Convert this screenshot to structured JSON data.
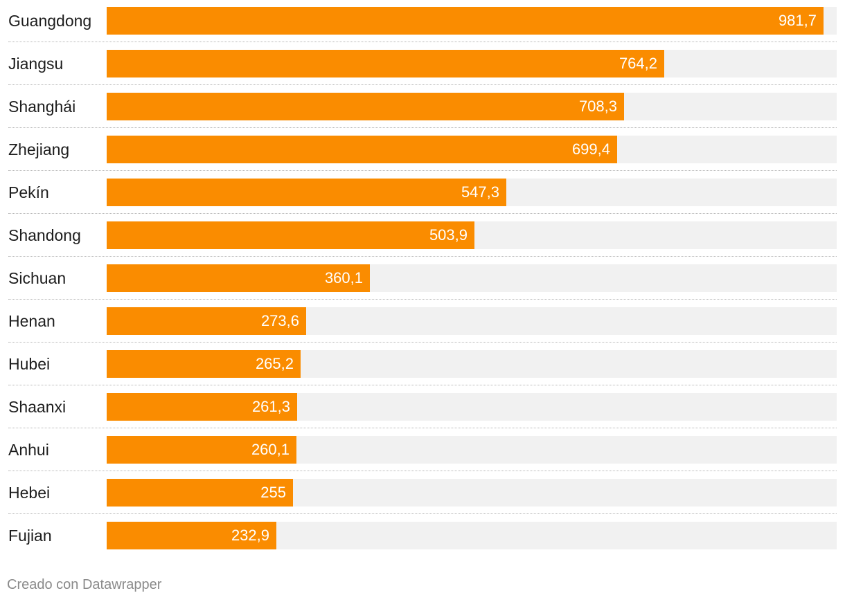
{
  "chart_data": {
    "type": "bar",
    "orientation": "horizontal",
    "categories": [
      "Guangdong",
      "Jiangsu",
      "Shanghái",
      "Zhejiang",
      "Pekín",
      "Shandong",
      "Sichuan",
      "Henan",
      "Hubei",
      "Shaanxi",
      "Anhui",
      "Hebei",
      "Fujian"
    ],
    "values": [
      981.7,
      764.2,
      708.3,
      699.4,
      547.3,
      503.9,
      360.1,
      273.6,
      265.2,
      261.3,
      260.1,
      255,
      232.9
    ],
    "value_labels": [
      "981,7",
      "764,2",
      "708,3",
      "699,4",
      "547,3",
      "503,9",
      "360,1",
      "273,6",
      "265,2",
      "261,3",
      "260,1",
      "255",
      "232,9"
    ],
    "xlim": [
      0,
      1000
    ],
    "title": "",
    "xlabel": "",
    "ylabel": "",
    "grid": false,
    "legend": "none"
  },
  "colors": {
    "bar": "#fa8c00",
    "track": "#f1f1f1",
    "label": "#1d1d1d",
    "value_text": "#ffffff",
    "footer": "#8a8a8a"
  },
  "footer": {
    "credit": "Creado con Datawrapper"
  }
}
